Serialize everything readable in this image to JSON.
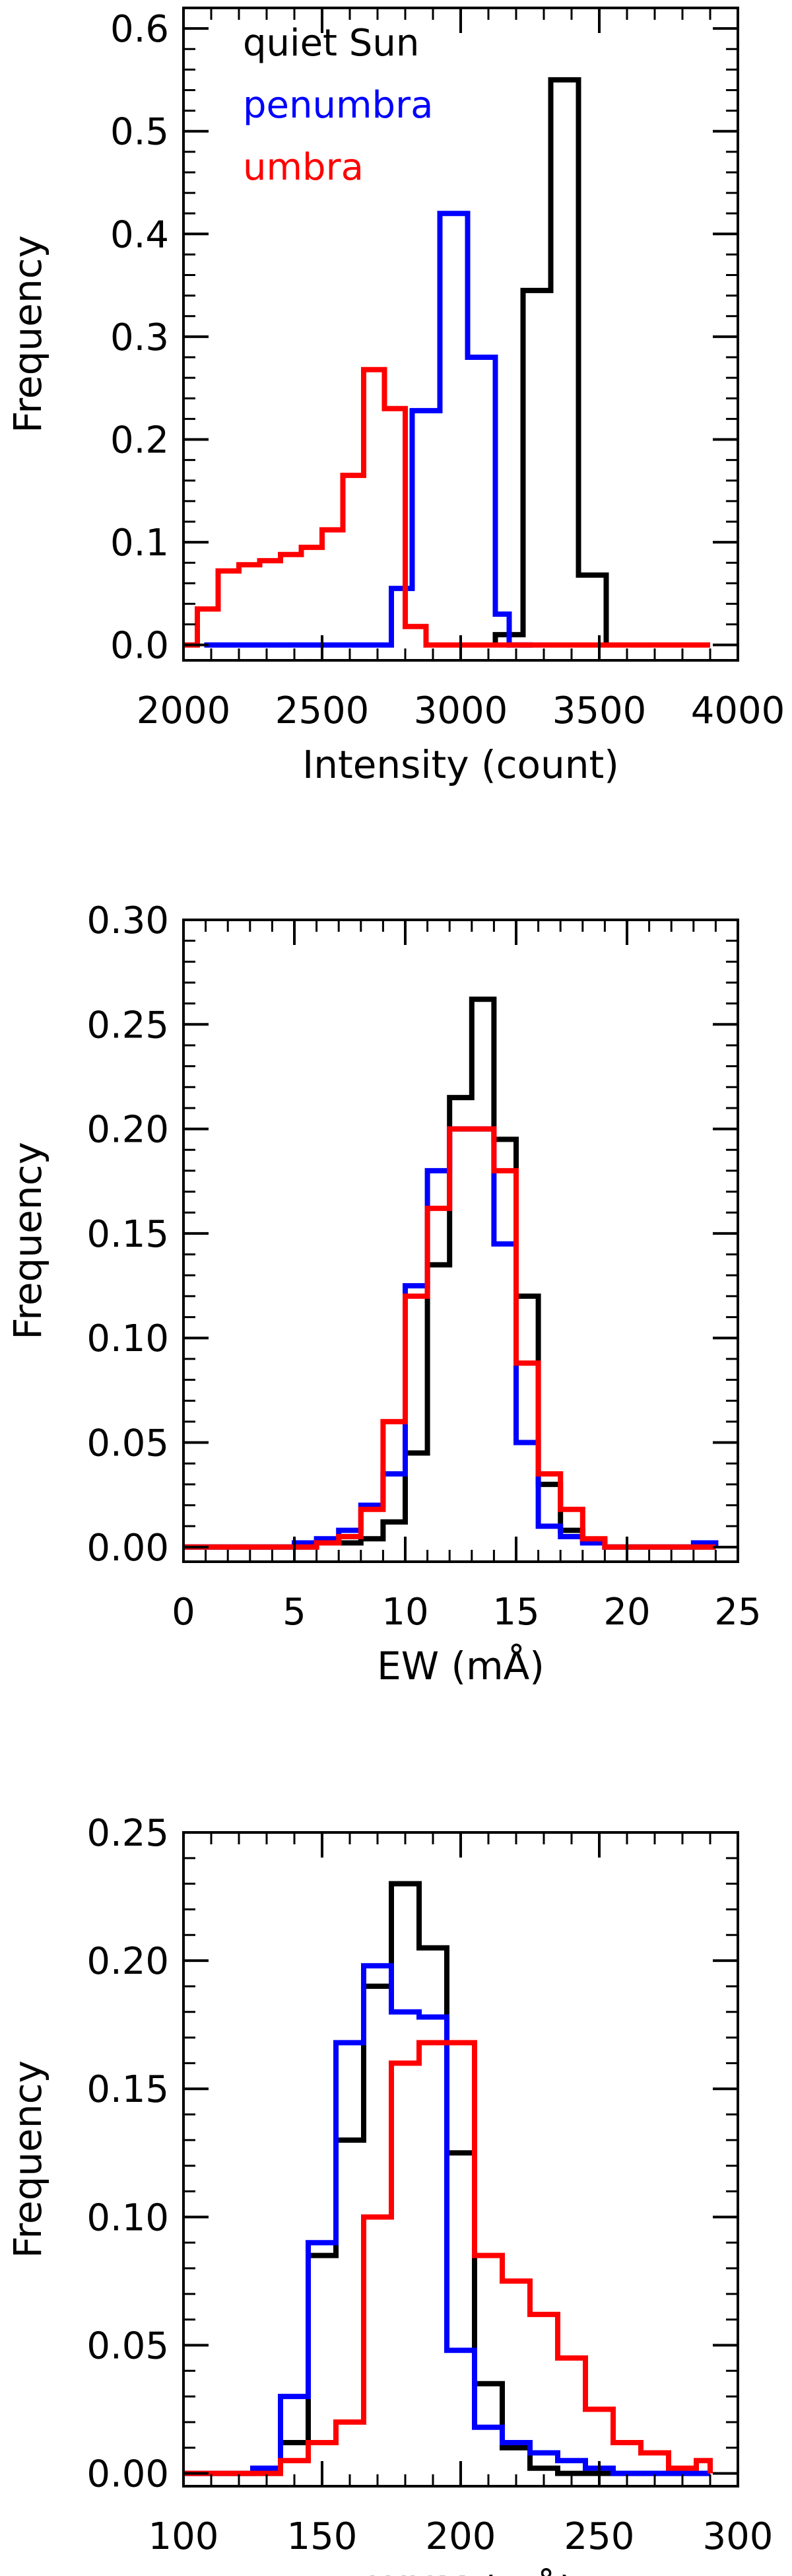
{
  "figure": {
    "description_panels": 3
  },
  "colors": {
    "quiet_sun": "#000000",
    "penumbra": "#0000ff",
    "umbra": "#ff0000",
    "axis": "#000000"
  },
  "chart_data": [
    {
      "id": "intensity",
      "type": "histogram",
      "xlabel": "Intensity (count)",
      "ylabel": "Frequency",
      "xlim": [
        2000,
        4000
      ],
      "ylim": [
        -0.015,
        0.62
      ],
      "xticks": [
        2000,
        2500,
        3000,
        3500,
        4000
      ],
      "xtick_labels": [
        "2000",
        "2500",
        "3000",
        "3500",
        "4000"
      ],
      "xminor_step": 100,
      "yticks": [
        0.0,
        0.1,
        0.2,
        0.3,
        0.4,
        0.5,
        0.6
      ],
      "ytick_labels": [
        "0.0",
        "0.1",
        "0.2",
        "0.3",
        "0.4",
        "0.5",
        "0.6"
      ],
      "yminor_step": 0.02,
      "legend": {
        "position": "top-left",
        "entries": [
          {
            "label": "quiet Sun",
            "series": "quiet_sun"
          },
          {
            "label": "penumbra",
            "series": "penumbra"
          },
          {
            "label": "umbra",
            "series": "umbra"
          }
        ]
      },
      "series": [
        {
          "name": "quiet_sun",
          "edges": [
            3125,
            3225,
            3325,
            3425,
            3525
          ],
          "values": [
            0.01,
            0.345,
            0.55,
            0.068
          ]
        },
        {
          "name": "penumbra",
          "edges": [
            2075,
            2750,
            2825,
            2925,
            3025,
            3125,
            3175,
            3260
          ],
          "values": [
            0.0,
            0.055,
            0.228,
            0.42,
            0.28,
            0.03,
            0.0
          ]
        },
        {
          "name": "umbra",
          "edges": [
            2000,
            2050,
            2125,
            2200,
            2275,
            2350,
            2425,
            2500,
            2575,
            2650,
            2725,
            2800,
            2875,
            2950,
            3025,
            3100,
            3175,
            3250,
            3325,
            3400,
            3475,
            3550,
            3625,
            3700,
            3775,
            3850,
            3900
          ],
          "values": [
            0.0,
            0.035,
            0.072,
            0.078,
            0.082,
            0.088,
            0.095,
            0.112,
            0.165,
            0.268,
            0.23,
            0.018,
            0.0,
            0.0,
            0.0,
            0.0,
            0.0,
            0.0,
            0.0,
            0.0,
            0.0,
            0.0,
            0.0,
            0.0,
            0.0,
            0.0
          ]
        }
      ]
    },
    {
      "id": "ew",
      "type": "histogram",
      "xlabel": "EW (mÅ)",
      "ylabel": "Frequency",
      "xlim": [
        0,
        25
      ],
      "ylim": [
        -0.007,
        0.3
      ],
      "xticks": [
        0,
        5,
        10,
        15,
        20,
        25
      ],
      "xtick_labels": [
        "0",
        "5",
        "10",
        "15",
        "20",
        "25"
      ],
      "xminor_step": 1,
      "yticks": [
        0.0,
        0.05,
        0.1,
        0.15,
        0.2,
        0.25,
        0.3
      ],
      "ytick_labels": [
        "0.00",
        "0.05",
        "0.10",
        "0.15",
        "0.20",
        "0.25",
        "0.30"
      ],
      "yminor_step": 0.01,
      "legend": null,
      "series": [
        {
          "name": "quiet_sun",
          "edges": [
            0,
            1,
            2,
            3,
            4,
            5,
            6,
            7,
            8,
            9,
            10,
            11,
            12,
            13,
            14,
            15,
            16,
            17,
            18,
            19,
            20,
            21,
            22,
            23,
            24
          ],
          "values": [
            0.0,
            0.0,
            0.0,
            0.0,
            0.0,
            0.0,
            0.002,
            0.002,
            0.004,
            0.012,
            0.045,
            0.135,
            0.215,
            0.262,
            0.195,
            0.12,
            0.03,
            0.008,
            0.003,
            0.0,
            0.0,
            0.0,
            0.0,
            0.0
          ]
        },
        {
          "name": "penumbra",
          "edges": [
            0,
            1,
            2,
            3,
            4,
            5,
            6,
            7,
            8,
            9,
            10,
            11,
            12,
            13,
            14,
            15,
            16,
            17,
            18,
            19,
            20,
            21,
            22,
            23,
            24
          ],
          "values": [
            0.0,
            0.0,
            0.0,
            0.0,
            0.0,
            0.002,
            0.004,
            0.008,
            0.02,
            0.035,
            0.125,
            0.18,
            0.2,
            0.2,
            0.145,
            0.05,
            0.01,
            0.005,
            0.002,
            0.0,
            0.0,
            0.0,
            0.0,
            0.002
          ]
        },
        {
          "name": "umbra",
          "edges": [
            0,
            1,
            2,
            3,
            4,
            5,
            6,
            7,
            8,
            9,
            10,
            11,
            12,
            13,
            14,
            15,
            16,
            17,
            18,
            19,
            20,
            21,
            22,
            23,
            24
          ],
          "values": [
            0.0,
            0.0,
            0.0,
            0.0,
            0.0,
            0.0,
            0.002,
            0.005,
            0.018,
            0.06,
            0.12,
            0.162,
            0.2,
            0.2,
            0.18,
            0.088,
            0.035,
            0.018,
            0.004,
            0.0,
            0.0,
            0.0,
            0.0,
            0.0
          ]
        }
      ]
    },
    {
      "id": "fwhm",
      "type": "histogram",
      "xlabel": "FWHM (mÅ)",
      "ylabel": "Frequency",
      "xlim": [
        100,
        300
      ],
      "ylim": [
        -0.005,
        0.25
      ],
      "xticks": [
        100,
        150,
        200,
        250,
        300
      ],
      "xtick_labels": [
        "100",
        "150",
        "200",
        "250",
        "300"
      ],
      "xminor_step": 10,
      "yticks": [
        0.0,
        0.05,
        0.1,
        0.15,
        0.2,
        0.25
      ],
      "ytick_labels": [
        "0.00",
        "0.05",
        "0.10",
        "0.15",
        "0.20",
        "0.25"
      ],
      "yminor_step": 0.01,
      "legend": null,
      "series": [
        {
          "name": "quiet_sun",
          "edges": [
            100,
            115,
            125,
            135,
            145,
            155,
            165,
            175,
            185,
            195,
            205,
            215,
            225,
            235,
            245,
            255,
            265,
            275,
            285,
            290
          ],
          "values": [
            0.0,
            0.0,
            0.0,
            0.012,
            0.085,
            0.13,
            0.19,
            0.23,
            0.205,
            0.125,
            0.035,
            0.01,
            0.002,
            0.0,
            0.0,
            0.0,
            0.0,
            0.0,
            0.0
          ]
        },
        {
          "name": "penumbra",
          "edges": [
            100,
            115,
            125,
            135,
            145,
            155,
            165,
            175,
            185,
            195,
            205,
            215,
            225,
            235,
            245,
            255,
            265,
            275,
            285,
            290
          ],
          "values": [
            0.0,
            0.0,
            0.002,
            0.03,
            0.09,
            0.168,
            0.198,
            0.18,
            0.178,
            0.048,
            0.018,
            0.012,
            0.008,
            0.005,
            0.002,
            0.0,
            0.0,
            0.0,
            0.0
          ]
        },
        {
          "name": "umbra",
          "edges": [
            100,
            115,
            125,
            135,
            145,
            155,
            165,
            175,
            185,
            195,
            205,
            215,
            225,
            235,
            245,
            255,
            265,
            275,
            285,
            290
          ],
          "values": [
            0.0,
            0.0,
            0.0,
            0.005,
            0.012,
            0.02,
            0.1,
            0.16,
            0.168,
            0.168,
            0.085,
            0.075,
            0.062,
            0.045,
            0.025,
            0.012,
            0.008,
            0.002,
            0.005
          ]
        }
      ]
    }
  ]
}
